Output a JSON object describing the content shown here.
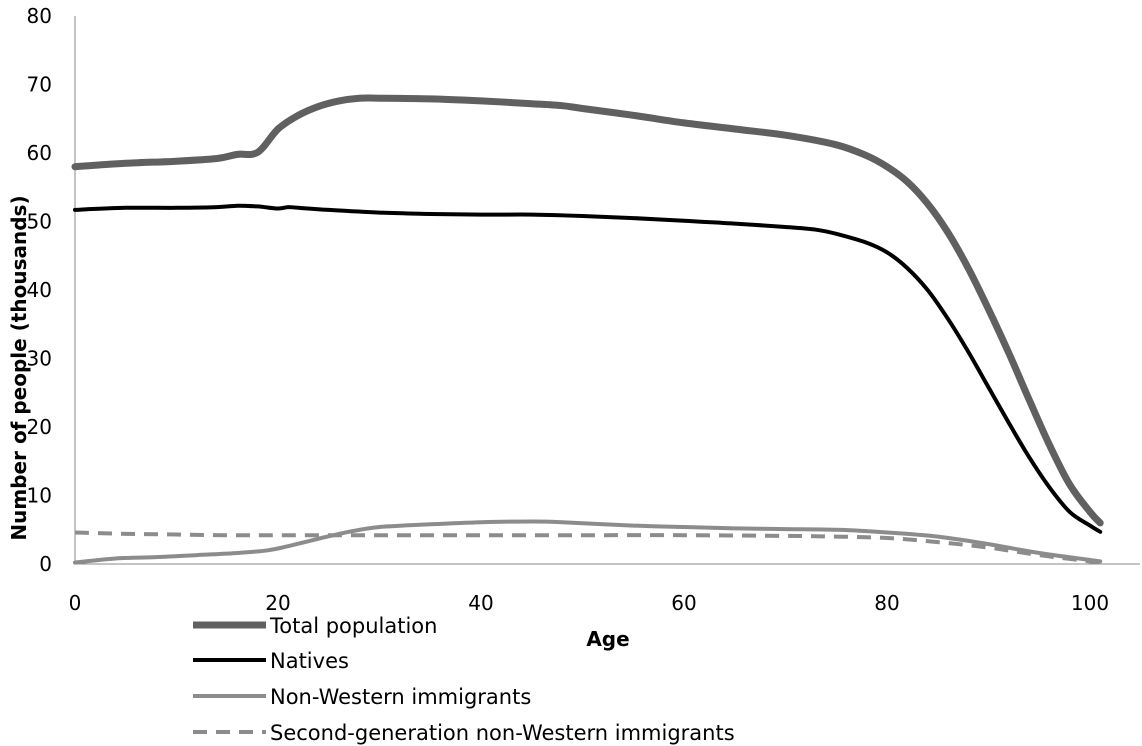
{
  "chart_data": {
    "type": "line",
    "title": "",
    "xlabel": "Age",
    "ylabel": "Number of people (thousands)",
    "xlim": [
      0,
      104
    ],
    "ylim": [
      0,
      80
    ],
    "xticks": [
      0,
      20,
      40,
      60,
      80,
      100
    ],
    "yticks": [
      0,
      10,
      20,
      30,
      40,
      50,
      60,
      70,
      80
    ],
    "grid": false,
    "legend_position": "bottom-left",
    "series": [
      {
        "name": "Total population",
        "color": "#606060",
        "style": "solid-thick",
        "points": [
          [
            0,
            58
          ],
          [
            5,
            58.5
          ],
          [
            10,
            58.8
          ],
          [
            14,
            59.2
          ],
          [
            16,
            59.8
          ],
          [
            18,
            60.1
          ],
          [
            20,
            63.5
          ],
          [
            22,
            65.5
          ],
          [
            24,
            66.8
          ],
          [
            26,
            67.6
          ],
          [
            28,
            68
          ],
          [
            30,
            68
          ],
          [
            35,
            67.9
          ],
          [
            40,
            67.6
          ],
          [
            45,
            67.2
          ],
          [
            48,
            66.9
          ],
          [
            50,
            66.5
          ],
          [
            55,
            65.5
          ],
          [
            60,
            64.4
          ],
          [
            65,
            63.5
          ],
          [
            70,
            62.6
          ],
          [
            75,
            61.2
          ],
          [
            78,
            59.6
          ],
          [
            80,
            58
          ],
          [
            82,
            55.8
          ],
          [
            84,
            52.6
          ],
          [
            86,
            48.4
          ],
          [
            88,
            43.2
          ],
          [
            90,
            37.2
          ],
          [
            92,
            30.8
          ],
          [
            94,
            24
          ],
          [
            96,
            17.4
          ],
          [
            98,
            11.6
          ],
          [
            100,
            7.6
          ],
          [
            101,
            6
          ]
        ]
      },
      {
        "name": "Natives",
        "color": "#000000",
        "style": "solid",
        "points": [
          [
            0,
            51.7
          ],
          [
            5,
            52
          ],
          [
            10,
            52
          ],
          [
            14,
            52.1
          ],
          [
            16,
            52.3
          ],
          [
            18,
            52.2
          ],
          [
            20,
            51.9
          ],
          [
            21,
            52.1
          ],
          [
            22,
            52
          ],
          [
            25,
            51.7
          ],
          [
            30,
            51.3
          ],
          [
            35,
            51.1
          ],
          [
            40,
            51
          ],
          [
            45,
            51
          ],
          [
            50,
            50.8
          ],
          [
            55,
            50.5
          ],
          [
            60,
            50.1
          ],
          [
            65,
            49.7
          ],
          [
            70,
            49.2
          ],
          [
            73,
            48.8
          ],
          [
            75,
            48.2
          ],
          [
            78,
            46.9
          ],
          [
            80,
            45.5
          ],
          [
            82,
            43.2
          ],
          [
            84,
            40
          ],
          [
            86,
            35.8
          ],
          [
            88,
            31
          ],
          [
            90,
            25.8
          ],
          [
            92,
            20.6
          ],
          [
            94,
            15.6
          ],
          [
            96,
            11.2
          ],
          [
            98,
            7.6
          ],
          [
            100,
            5.6
          ],
          [
            101,
            4.7
          ]
        ]
      },
      {
        "name": "Non-Western immigrants",
        "color": "#8c8c8c",
        "style": "solid",
        "points": [
          [
            0,
            0.2
          ],
          [
            4,
            0.8
          ],
          [
            8,
            1
          ],
          [
            12,
            1.3
          ],
          [
            16,
            1.6
          ],
          [
            19,
            2
          ],
          [
            21,
            2.6
          ],
          [
            24,
            3.7
          ],
          [
            27,
            4.7
          ],
          [
            30,
            5.4
          ],
          [
            35,
            5.8
          ],
          [
            40,
            6.1
          ],
          [
            45,
            6.2
          ],
          [
            48,
            6.1
          ],
          [
            55,
            5.6
          ],
          [
            60,
            5.4
          ],
          [
            65,
            5.2
          ],
          [
            70,
            5.1
          ],
          [
            75,
            5
          ],
          [
            80,
            4.6
          ],
          [
            85,
            4
          ],
          [
            90,
            2.9
          ],
          [
            95,
            1.6
          ],
          [
            101,
            0.4
          ]
        ]
      },
      {
        "name": "Second-generation non-Western immigrants",
        "color": "#8c8c8c",
        "style": "dashed",
        "points": [
          [
            0,
            4.6
          ],
          [
            5,
            4.4
          ],
          [
            10,
            4.3
          ],
          [
            15,
            4.2
          ],
          [
            20,
            4.2
          ],
          [
            30,
            4.2
          ],
          [
            40,
            4.2
          ],
          [
            50,
            4.2
          ],
          [
            60,
            4.2
          ],
          [
            70,
            4.1
          ],
          [
            75,
            4
          ],
          [
            80,
            3.8
          ],
          [
            85,
            3.2
          ],
          [
            90,
            2.4
          ],
          [
            95,
            1.3
          ],
          [
            101,
            0.2
          ]
        ]
      }
    ]
  }
}
